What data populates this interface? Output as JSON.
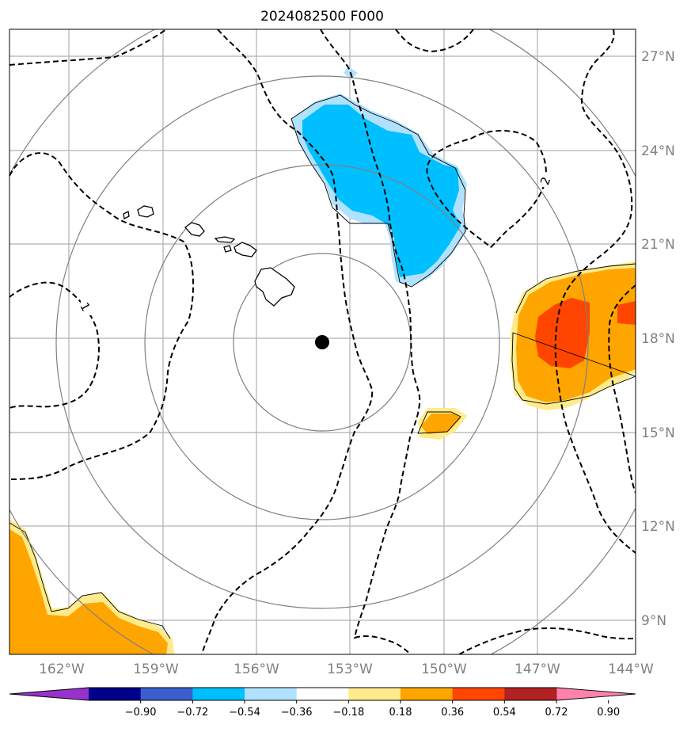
{
  "title": "2024082500 F000",
  "longitude_labels": [
    "162°W",
    "159°W",
    "156°W",
    "153°W",
    "150°W",
    "147°W",
    "144°W"
  ],
  "latitude_labels": [
    "27°N",
    "24°N",
    "21°N",
    "18°N",
    "15°N",
    "12°N",
    "9°N"
  ],
  "colorbar": {
    "tick_labels": [
      "−0.90",
      "−0.72",
      "−0.54",
      "−0.36",
      "−0.18",
      "0.18",
      "0.36",
      "0.54",
      "0.72",
      "0.90"
    ],
    "colors": [
      "#9932cc",
      "#00008b",
      "#3a5fcd",
      "#00bfff",
      "#b0e2ff",
      "#ffffff",
      "#ffeb8b",
      "#ffa500",
      "#ff4500",
      "#b22222",
      "#ff82ab"
    ]
  },
  "contour_labels": [
    "2",
    "1"
  ],
  "fill_colors": {
    "light_blue": "#b0e2ff",
    "blue": "#00bfff",
    "yellow": "#ffeb8b",
    "orange": "#ffa500",
    "red_orange": "#ff4500"
  },
  "storm_center_marker": "filled-black-circle",
  "range_ring_color": "#808080",
  "grid_color": "#b0b0b0"
}
